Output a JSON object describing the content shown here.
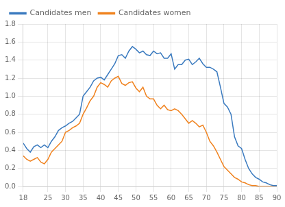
{
  "chart_data": {
    "type": "line",
    "x": [
      18,
      19,
      20,
      21,
      22,
      23,
      24,
      25,
      26,
      27,
      28,
      29,
      30,
      31,
      32,
      33,
      34,
      35,
      36,
      37,
      38,
      39,
      40,
      41,
      42,
      43,
      44,
      45,
      46,
      47,
      48,
      49,
      50,
      51,
      52,
      53,
      54,
      55,
      56,
      57,
      58,
      59,
      60,
      61,
      62,
      63,
      64,
      65,
      66,
      67,
      68,
      69,
      70,
      71,
      72,
      73,
      74,
      75,
      76,
      77,
      78,
      79,
      80,
      81,
      82,
      83,
      84,
      85,
      86,
      87,
      88,
      89,
      90
    ],
    "series": [
      {
        "name": "Candidates men",
        "color": "#3a7abf",
        "values": [
          0.48,
          0.42,
          0.38,
          0.44,
          0.46,
          0.43,
          0.46,
          0.43,
          0.5,
          0.55,
          0.62,
          0.65,
          0.67,
          0.7,
          0.72,
          0.76,
          0.8,
          1.0,
          1.05,
          1.1,
          1.17,
          1.2,
          1.21,
          1.18,
          1.24,
          1.3,
          1.36,
          1.45,
          1.46,
          1.42,
          1.5,
          1.55,
          1.52,
          1.48,
          1.5,
          1.46,
          1.45,
          1.5,
          1.47,
          1.48,
          1.42,
          1.42,
          1.47,
          1.3,
          1.35,
          1.35,
          1.4,
          1.41,
          1.35,
          1.38,
          1.42,
          1.36,
          1.32,
          1.32,
          1.3,
          1.27,
          1.1,
          0.92,
          0.88,
          0.8,
          0.55,
          0.45,
          0.42,
          0.3,
          0.2,
          0.14,
          0.1,
          0.08,
          0.05,
          0.04,
          0.02,
          0.01,
          0.01
        ]
      },
      {
        "name": "Candidates women",
        "color": "#f0821e",
        "values": [
          0.34,
          0.3,
          0.28,
          0.3,
          0.32,
          0.27,
          0.25,
          0.3,
          0.38,
          0.42,
          0.46,
          0.5,
          0.6,
          0.62,
          0.65,
          0.67,
          0.7,
          0.8,
          0.87,
          0.95,
          1.0,
          1.1,
          1.15,
          1.13,
          1.1,
          1.17,
          1.2,
          1.22,
          1.14,
          1.12,
          1.15,
          1.16,
          1.09,
          1.05,
          1.1,
          1.0,
          0.97,
          0.97,
          0.9,
          0.86,
          0.9,
          0.85,
          0.84,
          0.86,
          0.84,
          0.8,
          0.75,
          0.7,
          0.73,
          0.7,
          0.66,
          0.68,
          0.6,
          0.5,
          0.45,
          0.38,
          0.3,
          0.22,
          0.18,
          0.14,
          0.1,
          0.08,
          0.05,
          0.04,
          0.02,
          0.01,
          0.01,
          0.0,
          0.0,
          0.0,
          0.0,
          0.0,
          0.0
        ]
      }
    ],
    "xlim": [
      18,
      90
    ],
    "ylim": [
      0.0,
      1.8
    ],
    "xticks": [
      18,
      25,
      30,
      35,
      40,
      45,
      50,
      55,
      60,
      65,
      70,
      75,
      80,
      85,
      90
    ],
    "yticks": [
      {
        "value": 0,
        "label": "0.0"
      },
      0.2,
      0.4,
      0.6,
      0.8,
      {
        "value": 1,
        "label": "1.0"
      },
      1.2,
      1.4,
      1.6,
      1.8
    ],
    "grid": true,
    "legend": "upper left"
  }
}
